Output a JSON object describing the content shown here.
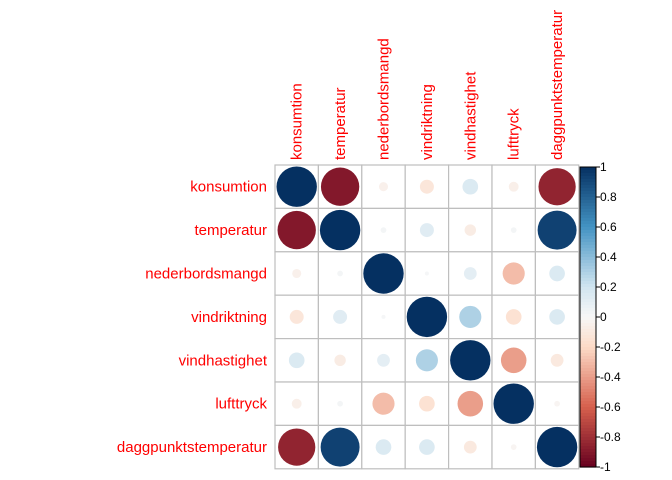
{
  "chart_data": {
    "type": "heatmap",
    "variant": "correlation-circles",
    "variables": [
      "konsumtion",
      "temperatur",
      "nederbordsmangd",
      "vindriktning",
      "vindhastighet",
      "lufttryck",
      "daggpunktstemperatur"
    ],
    "matrix": [
      [
        1.0,
        -0.9,
        -0.05,
        -0.12,
        0.15,
        -0.06,
        -0.85
      ],
      [
        -0.9,
        1.0,
        0.02,
        0.12,
        -0.08,
        0.02,
        0.93
      ],
      [
        -0.05,
        0.02,
        1.0,
        0.01,
        0.1,
        -0.3,
        0.15
      ],
      [
        -0.12,
        0.12,
        0.01,
        1.0,
        0.3,
        -0.15,
        0.15
      ],
      [
        0.15,
        -0.08,
        0.1,
        0.3,
        1.0,
        -0.4,
        -0.1
      ],
      [
        -0.06,
        0.02,
        -0.3,
        -0.15,
        -0.4,
        1.0,
        -0.02
      ],
      [
        -0.85,
        0.93,
        0.15,
        0.15,
        -0.1,
        -0.02,
        1.0
      ]
    ],
    "colorbar": {
      "range": [
        -1,
        1
      ],
      "ticks": [
        "-1",
        "-0.8",
        "-0.6",
        "-0.4",
        "-0.2",
        "0",
        "0.2",
        "0.4",
        "0.6",
        "0.8",
        "1"
      ],
      "colors": {
        "negative": "#67001f",
        "zero": "#f7f7f7",
        "positive": "#053061"
      }
    },
    "grid": true,
    "label_color": "#ff0000"
  }
}
